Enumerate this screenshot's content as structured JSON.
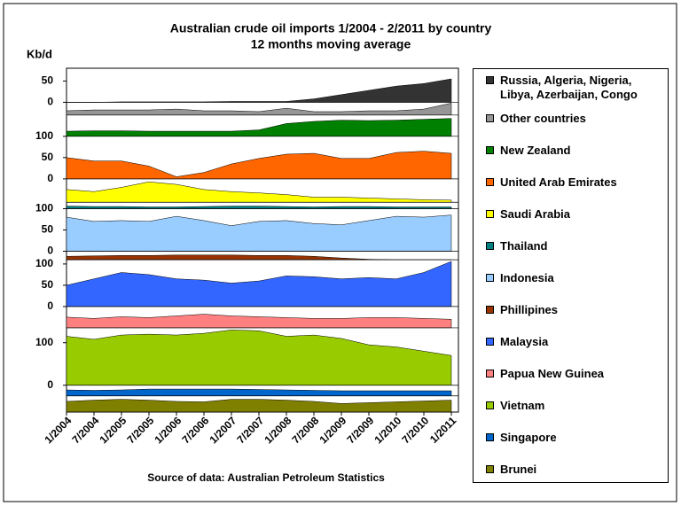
{
  "chart_data": {
    "type": "area",
    "title": "Australian crude oil imports 1/2004 - 2/2011 by country",
    "subtitle": "12 months moving average",
    "y_label": "Kb/d",
    "source": "Source of data:  Australian Petroleum Statistics",
    "x": [
      "1/2004",
      "7/2004",
      "1/2005",
      "7/2005",
      "1/2006",
      "7/2006",
      "1/2007",
      "7/2007",
      "1/2008",
      "7/2008",
      "1/2009",
      "7/2009",
      "1/2010",
      "7/2010",
      "1/2011"
    ],
    "series": [
      {
        "name": "Russia, Algeria, Nigeria, Libya, Azerbaijan, Congo",
        "color": "#333333",
        "ylim": [
          0,
          80
        ],
        "yticks": [
          0,
          50
        ],
        "values": [
          0,
          0,
          1,
          1,
          1,
          1,
          2,
          2,
          2,
          8,
          18,
          28,
          38,
          44,
          55
        ]
      },
      {
        "name": "Other countries",
        "color": "#969696",
        "ylim": [
          0,
          30
        ],
        "yticks": [],
        "values": [
          10,
          12,
          12,
          12,
          14,
          10,
          10,
          8,
          16,
          8,
          8,
          10,
          10,
          14,
          28
        ]
      },
      {
        "name": "New Zealand",
        "color": "#008000",
        "ylim": [
          0,
          50
        ],
        "yticks": [],
        "values": [
          12,
          13,
          13,
          12,
          12,
          12,
          12,
          15,
          30,
          35,
          38,
          37,
          38,
          40,
          42
        ]
      },
      {
        "name": "United Arab Emirates",
        "color": "#ff6600",
        "ylim": [
          0,
          100
        ],
        "yticks": [
          0,
          50,
          100
        ],
        "values": [
          50,
          42,
          42,
          30,
          5,
          15,
          35,
          48,
          58,
          60,
          48,
          48,
          62,
          65,
          60
        ]
      },
      {
        "name": "Saudi Arabia",
        "color": "#ffff00",
        "ylim": [
          0,
          55
        ],
        "yticks": [],
        "values": [
          30,
          25,
          35,
          48,
          42,
          30,
          25,
          22,
          18,
          12,
          12,
          10,
          8,
          6,
          5
        ]
      },
      {
        "name": "Thailand",
        "color": "#008080",
        "ylim": [
          0,
          15
        ],
        "yticks": [],
        "values": [
          6,
          5,
          5,
          4,
          4,
          5,
          6,
          6,
          5,
          4,
          5,
          5,
          4,
          4,
          4
        ]
      },
      {
        "name": "Indonesia",
        "color": "#99ccff",
        "ylim": [
          0,
          100
        ],
        "yticks": [
          0,
          50,
          100
        ],
        "values": [
          80,
          70,
          72,
          70,
          82,
          72,
          60,
          70,
          72,
          65,
          62,
          72,
          82,
          80,
          85
        ]
      },
      {
        "name": "Phillipines",
        "color": "#993300",
        "ylim": [
          0,
          20
        ],
        "yticks": [],
        "values": [
          8,
          9,
          10,
          10,
          11,
          11,
          11,
          10,
          10,
          8,
          4,
          1,
          0,
          0,
          0
        ]
      },
      {
        "name": "Malaysia",
        "color": "#3366ff",
        "ylim": [
          0,
          110
        ],
        "yticks": [
          0,
          50,
          100
        ],
        "values": [
          50,
          65,
          80,
          75,
          65,
          62,
          55,
          60,
          72,
          70,
          65,
          68,
          65,
          80,
          106
        ]
      },
      {
        "name": "Papua New Guinea",
        "color": "#ff8080",
        "ylim": [
          0,
          50
        ],
        "yticks": [],
        "values": [
          25,
          22,
          26,
          24,
          28,
          32,
          28,
          26,
          24,
          22,
          22,
          24,
          24,
          22,
          20
        ]
      },
      {
        "name": "Vietnam",
        "color": "#99cc00",
        "ylim": [
          0,
          135
        ],
        "yticks": [
          0,
          100
        ],
        "values": [
          115,
          108,
          118,
          120,
          118,
          122,
          130,
          128,
          115,
          118,
          110,
          95,
          90,
          80,
          70
        ]
      },
      {
        "name": "Singapore",
        "color": "#0066cc",
        "ylim": [
          0,
          25
        ],
        "yticks": [],
        "values": [
          14,
          13,
          14,
          16,
          16,
          16,
          16,
          15,
          14,
          13,
          12,
          12,
          12,
          12,
          12
        ]
      },
      {
        "name": "Brunei",
        "color": "#808000",
        "ylim": [
          0,
          38
        ],
        "yticks": [],
        "values": [
          25,
          28,
          30,
          28,
          25,
          24,
          30,
          30,
          28,
          25,
          20,
          22,
          24,
          26,
          28
        ]
      }
    ]
  }
}
